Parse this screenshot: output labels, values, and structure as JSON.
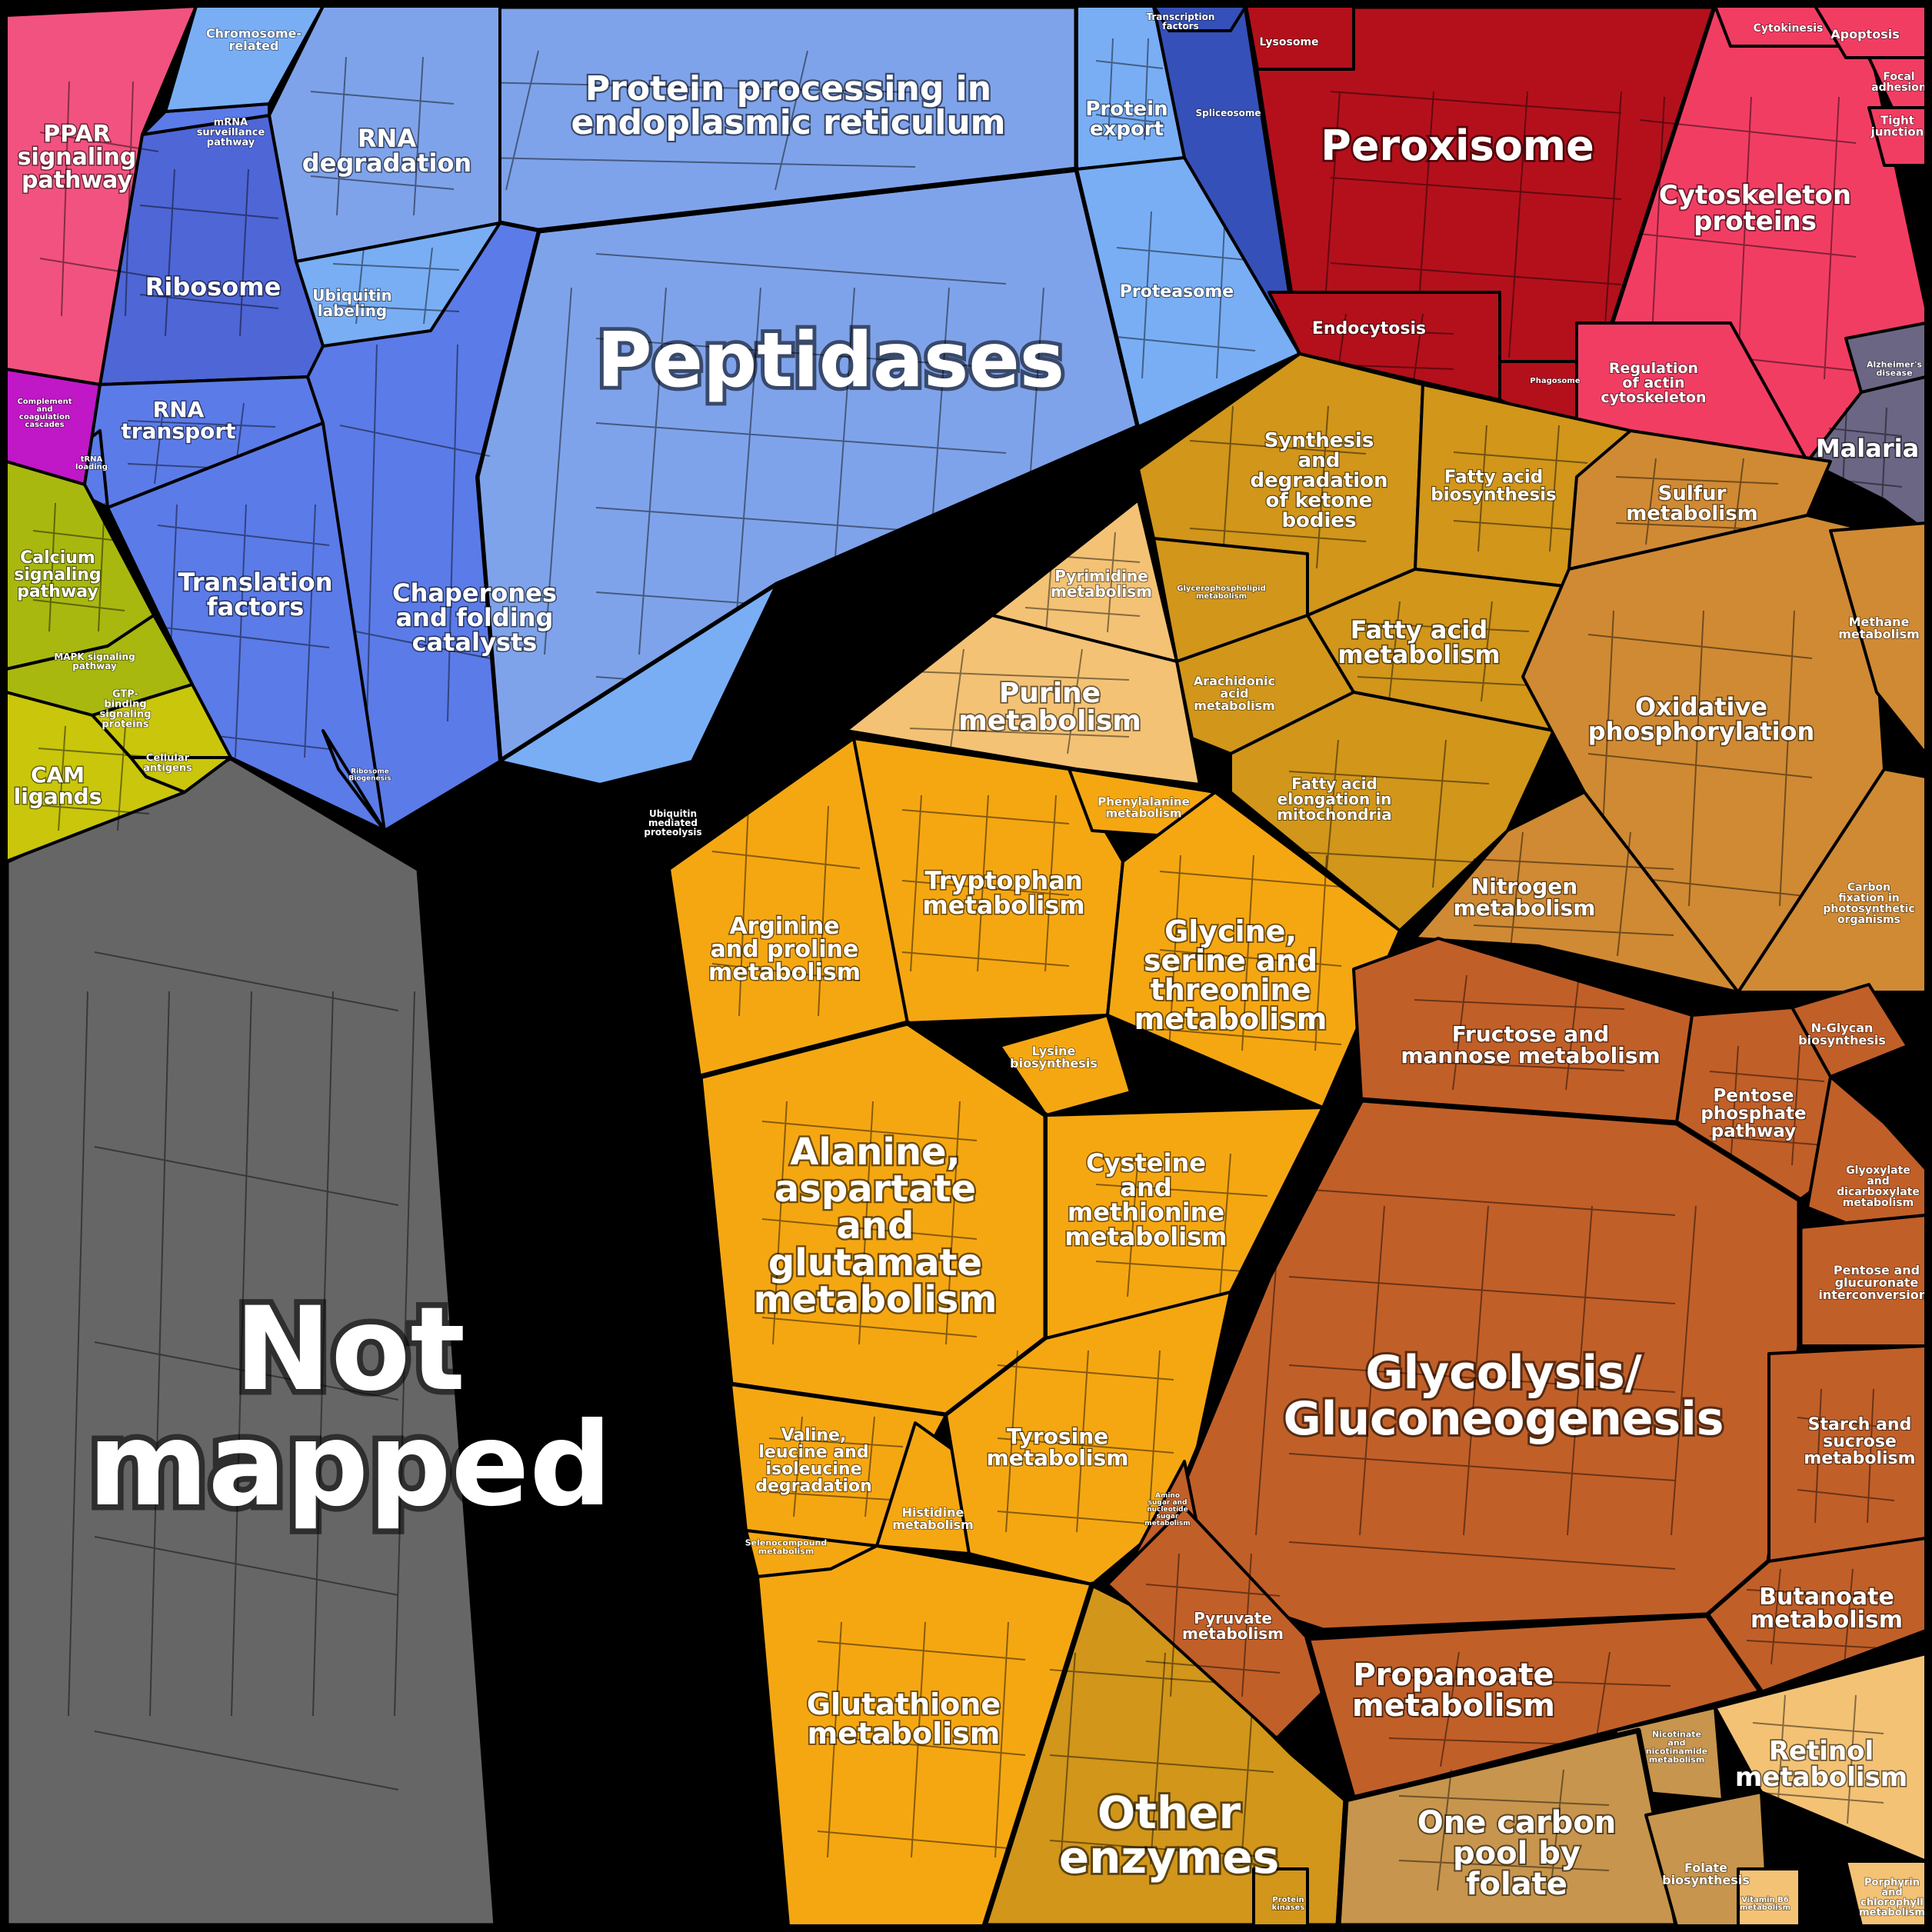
{
  "chart_data": {
    "type": "voronoi-treemap",
    "palette": {
      "not_mapped": "#666666",
      "protein_processing": "#7fa3ea",
      "translation": "#5b7be8",
      "ribosome_dark": "#4f66d6",
      "proteasome": "#79aef5",
      "spliceosome": "#3550b8",
      "peroxisome": "#b3101c",
      "cytoskeleton": "#f23d63",
      "ppar": "#f2527f",
      "signaling_green": "#a9b80f",
      "cam_yellow": "#c9c60c",
      "purple": "#c017c7",
      "lipid_gold": "#d1961a",
      "amino_orange": "#f5a712",
      "energy_orange": "#d08a34",
      "carb_brown": "#c15f28",
      "cofactor_tan": "#c7954d",
      "retinol": "#f3c275",
      "malaria": "#6a6684"
    },
    "cells": [
      {
        "label": "Not mapped",
        "color": "not_mapped"
      },
      {
        "label": "Peptidases",
        "color": "protein_processing"
      },
      {
        "label": "Protein processing in endoplasmic reticulum",
        "color": "protein_processing"
      },
      {
        "label": "RNA degradation",
        "color": "protein_processing"
      },
      {
        "label": "Protein export",
        "color": "proteasome"
      },
      {
        "label": "Proteasome",
        "color": "proteasome"
      },
      {
        "label": "Chaperones and folding catalysts",
        "color": "translation"
      },
      {
        "label": "Ubiquitin labeling",
        "color": "proteasome"
      },
      {
        "label": "Ubiquitin mediated proteolysis",
        "color": "proteasome"
      },
      {
        "label": "Ribosome",
        "color": "ribosome_dark"
      },
      {
        "label": "RNA transport",
        "color": "translation"
      },
      {
        "label": "Translation factors",
        "color": "translation"
      },
      {
        "label": "mRNA surveillance pathway",
        "color": "translation"
      },
      {
        "label": "Chromosome-related",
        "color": "proteasome"
      },
      {
        "label": "Spliceosome",
        "color": "spliceosome"
      },
      {
        "label": "Transcription factors",
        "color": "spliceosome"
      },
      {
        "label": "Ribosome Biogenesis",
        "color": "translation"
      },
      {
        "label": "tRNA loading",
        "color": "translation"
      },
      {
        "label": "PPAR signaling pathway",
        "color": "ppar"
      },
      {
        "label": "Complement and coagulation cascades",
        "color": "purple"
      },
      {
        "label": "Calcium signaling pathway",
        "color": "signaling_green"
      },
      {
        "label": "MAPK signaling pathway",
        "color": "signaling_green"
      },
      {
        "label": "GTP-binding signaling proteins",
        "color": "cam_yellow"
      },
      {
        "label": "Cellular antigens",
        "color": "cam_yellow"
      },
      {
        "label": "CAM ligands",
        "color": "cam_yellow"
      },
      {
        "label": "Peroxisome",
        "color": "peroxisome"
      },
      {
        "label": "Lysosome",
        "color": "peroxisome"
      },
      {
        "label": "Endocytosis",
        "color": "peroxisome"
      },
      {
        "label": "Phagosome",
        "color": "peroxisome"
      },
      {
        "label": "Cytoskeleton proteins",
        "color": "cytoskeleton"
      },
      {
        "label": "Regulation of actin cytoskeleton",
        "color": "cytoskeleton"
      },
      {
        "label": "Cytokinesis",
        "color": "cytoskeleton"
      },
      {
        "label": "Apoptosis",
        "color": "cytoskeleton"
      },
      {
        "label": "Focal adhesion",
        "color": "cytoskeleton"
      },
      {
        "label": "Tight junction",
        "color": "cytoskeleton"
      },
      {
        "label": "Alzheimer's disease",
        "color": "malaria"
      },
      {
        "label": "Malaria",
        "color": "malaria"
      },
      {
        "label": "Synthesis and degradation of ketone bodies",
        "color": "lipid_gold"
      },
      {
        "label": "Fatty acid biosynthesis",
        "color": "lipid_gold"
      },
      {
        "label": "Fatty acid metabolism",
        "color": "lipid_gold"
      },
      {
        "label": "Fatty acid elongation in mitochondria",
        "color": "lipid_gold"
      },
      {
        "label": "Arachidonic acid metabolism",
        "color": "lipid_gold"
      },
      {
        "label": "Glycerophospholipid metabolism",
        "color": "lipid_gold"
      },
      {
        "label": "Pyrimidine metabolism",
        "color": "retinol"
      },
      {
        "label": "Purine metabolism",
        "color": "retinol"
      },
      {
        "label": "Arginine and proline metabolism",
        "color": "amino_orange"
      },
      {
        "label": "Tryptophan metabolism",
        "color": "amino_orange"
      },
      {
        "label": "Phenylalanine metabolism",
        "color": "amino_orange"
      },
      {
        "label": "Glycine, serine and threonine metabolism",
        "color": "amino_orange"
      },
      {
        "label": "Lysine biosynthesis",
        "color": "amino_orange"
      },
      {
        "label": "Alanine, aspartate and glutamate metabolism",
        "color": "amino_orange"
      },
      {
        "label": "Cysteine and methionine metabolism",
        "color": "amino_orange"
      },
      {
        "label": "Valine, leucine and isoleucine degradation",
        "color": "amino_orange"
      },
      {
        "label": "Histidine metabolism",
        "color": "amino_orange"
      },
      {
        "label": "Tyrosine metabolism",
        "color": "amino_orange"
      },
      {
        "label": "Selenocompound metabolism",
        "color": "amino_orange"
      },
      {
        "label": "Glutathione metabolism",
        "color": "amino_orange"
      },
      {
        "label": "Other enzymes",
        "color": "lipid_gold"
      },
      {
        "label": "Sulfur metabolism",
        "color": "energy_orange"
      },
      {
        "label": "Oxidative phosphorylation",
        "color": "energy_orange"
      },
      {
        "label": "Methane metabolism",
        "color": "energy_orange"
      },
      {
        "label": "Nitrogen metabolism",
        "color": "energy_orange"
      },
      {
        "label": "Carbon fixation in photosynthetic organisms",
        "color": "energy_orange"
      },
      {
        "label": "N-Glycan biosynthesis",
        "color": "carb_brown"
      },
      {
        "label": "Fructose and mannose metabolism",
        "color": "carb_brown"
      },
      {
        "label": "Pentose phosphate pathway",
        "color": "carb_brown"
      },
      {
        "label": "Glyoxylate and dicarboxylate metabolism",
        "color": "carb_brown"
      },
      {
        "label": "Pentose and glucuronate interconversions",
        "color": "carb_brown"
      },
      {
        "label": "Glycolysis/ Gluconeogenesis",
        "color": "carb_brown"
      },
      {
        "label": "Starch and sucrose metabolism",
        "color": "carb_brown"
      },
      {
        "label": "Amino sugar and nucleotide sugar metabolism",
        "color": "carb_brown"
      },
      {
        "label": "Pyruvate metabolism",
        "color": "carb_brown"
      },
      {
        "label": "Butanoate metabolism",
        "color": "carb_brown"
      },
      {
        "label": "Propanoate metabolism",
        "color": "carb_brown"
      },
      {
        "label": "Nicotinate and nicotinamide metabolism",
        "color": "cofactor_tan"
      },
      {
        "label": "One carbon pool by folate",
        "color": "cofactor_tan"
      },
      {
        "label": "Folate biosynthesis",
        "color": "cofactor_tan"
      },
      {
        "label": "Retinol metabolism",
        "color": "retinol"
      },
      {
        "label": "Porphyrin and chlorophyll metabolism",
        "color": "retinol"
      },
      {
        "label": "Vitamin B6 metabolism",
        "color": "retinol"
      },
      {
        "label": "Protein kinases",
        "color": "lipid_gold"
      }
    ]
  }
}
